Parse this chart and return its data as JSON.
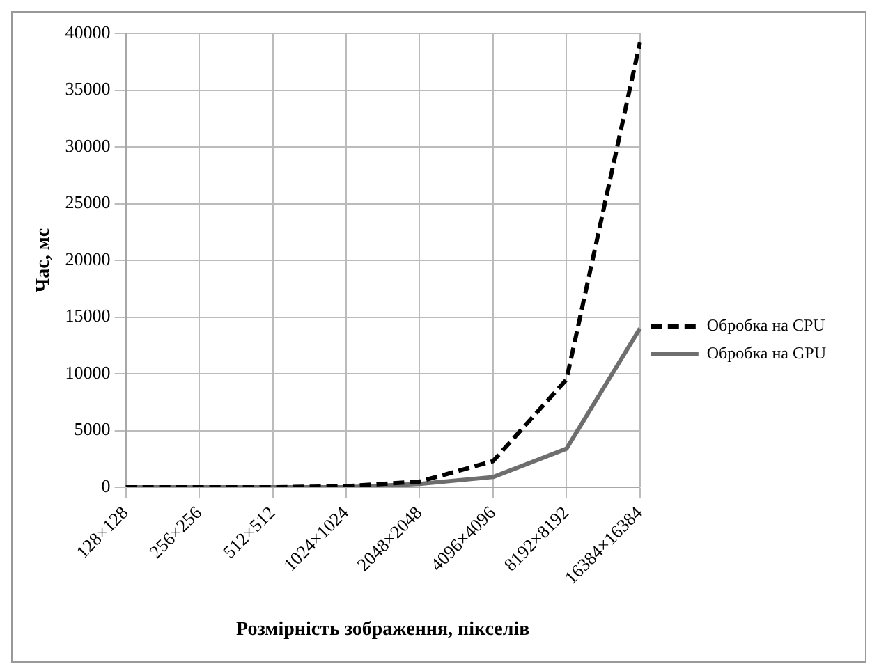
{
  "chart_data": {
    "type": "line",
    "xlabel": "Розмірність зображення, пікселів",
    "ylabel": "Час, мс",
    "categories": [
      "128×128",
      "256×256",
      "512×512",
      "1024×1024",
      "2048×2048",
      "4096×4096",
      "8192×8192",
      "16384×16384"
    ],
    "series": [
      {
        "name": "Обробка на CPU",
        "color": "#000000",
        "line_style": "dashed",
        "values": [
          0,
          0,
          0,
          100,
          500,
          2300,
          9500,
          39200
        ]
      },
      {
        "name": "Обробка на GPU",
        "color": "#6e6e6e",
        "line_style": "solid",
        "values": [
          0,
          0,
          0,
          0,
          300,
          900,
          3400,
          14000
        ]
      }
    ],
    "ylim": [
      0,
      40000
    ],
    "yticks": [
      0,
      5000,
      10000,
      15000,
      20000,
      25000,
      30000,
      35000,
      40000
    ],
    "grid": true,
    "legend": "right",
    "marker": "none"
  }
}
